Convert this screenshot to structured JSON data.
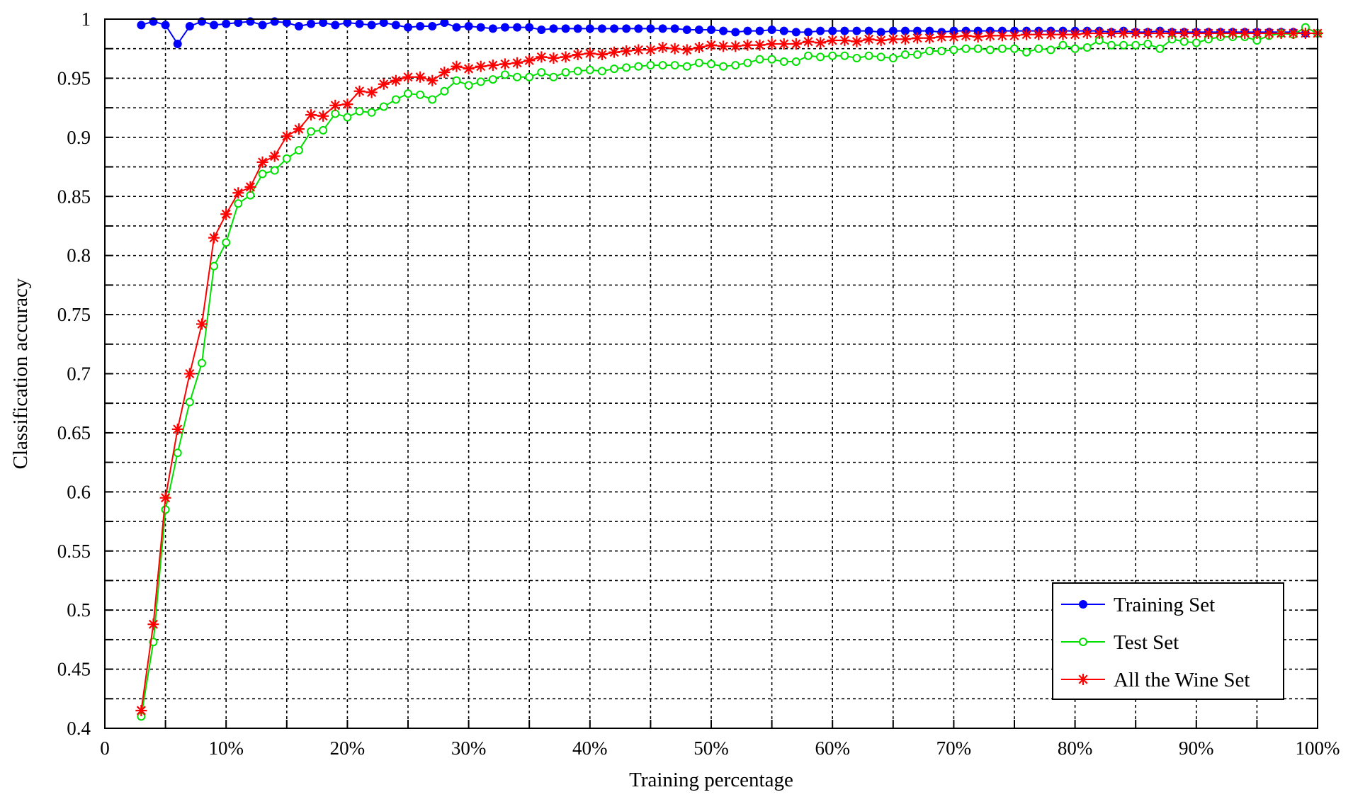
{
  "chart_data": {
    "type": "line",
    "title": "",
    "xlabel": "Training percentage",
    "ylabel": "Classification accuracy",
    "xlim": [
      0,
      100
    ],
    "ylim": [
      0.4,
      1.0
    ],
    "grid": true,
    "legend_position": "bottom-right",
    "x_ticks": [
      {
        "value": 0,
        "label": "0"
      },
      {
        "value": 10,
        "label": "10%"
      },
      {
        "value": 20,
        "label": "20%"
      },
      {
        "value": 30,
        "label": "30%"
      },
      {
        "value": 40,
        "label": "40%"
      },
      {
        "value": 50,
        "label": "50%"
      },
      {
        "value": 60,
        "label": "60%"
      },
      {
        "value": 70,
        "label": "70%"
      },
      {
        "value": 80,
        "label": "80%"
      },
      {
        "value": 90,
        "label": "90%"
      },
      {
        "value": 100,
        "label": "100%"
      }
    ],
    "y_ticks": [
      {
        "value": 0.4,
        "label": "0.4"
      },
      {
        "value": 0.45,
        "label": "0.45"
      },
      {
        "value": 0.5,
        "label": "0.5"
      },
      {
        "value": 0.55,
        "label": "0.55"
      },
      {
        "value": 0.6,
        "label": "0.6"
      },
      {
        "value": 0.65,
        "label": "0.65"
      },
      {
        "value": 0.7,
        "label": "0.7"
      },
      {
        "value": 0.75,
        "label": "0.75"
      },
      {
        "value": 0.8,
        "label": "0.8"
      },
      {
        "value": 0.85,
        "label": "0.85"
      },
      {
        "value": 0.9,
        "label": "0.9"
      },
      {
        "value": 0.95,
        "label": "0.95"
      },
      {
        "value": 1.0,
        "label": "1"
      }
    ],
    "x": [
      3,
      4,
      5,
      6,
      7,
      8,
      9,
      10,
      11,
      12,
      13,
      14,
      15,
      16,
      17,
      18,
      19,
      20,
      21,
      22,
      23,
      24,
      25,
      26,
      27,
      28,
      29,
      30,
      31,
      32,
      33,
      34,
      35,
      36,
      37,
      38,
      39,
      40,
      41,
      42,
      43,
      44,
      45,
      46,
      47,
      48,
      49,
      50,
      51,
      52,
      53,
      54,
      55,
      56,
      57,
      58,
      59,
      60,
      61,
      62,
      63,
      64,
      65,
      66,
      67,
      68,
      69,
      70,
      71,
      72,
      73,
      74,
      75,
      76,
      77,
      78,
      79,
      80,
      81,
      82,
      83,
      84,
      85,
      86,
      87,
      88,
      89,
      90,
      91,
      92,
      93,
      94,
      95,
      96,
      97,
      98,
      99,
      100
    ],
    "series": [
      {
        "name": "Training Set",
        "color": "#0000ff",
        "marker": "filled-circle",
        "values": [
          0.995,
          0.998,
          0.995,
          0.979,
          0.994,
          0.998,
          0.995,
          0.996,
          0.997,
          0.998,
          0.995,
          0.998,
          0.997,
          0.994,
          0.996,
          0.997,
          0.995,
          0.997,
          0.996,
          0.995,
          0.997,
          0.995,
          0.993,
          0.994,
          0.994,
          0.997,
          0.993,
          0.994,
          0.993,
          0.992,
          0.993,
          0.993,
          0.993,
          0.991,
          0.992,
          0.992,
          0.992,
          0.992,
          0.992,
          0.992,
          0.992,
          0.992,
          0.992,
          0.992,
          0.992,
          0.991,
          0.991,
          0.991,
          0.99,
          0.989,
          0.99,
          0.99,
          0.991,
          0.99,
          0.989,
          0.989,
          0.99,
          0.99,
          0.99,
          0.99,
          0.99,
          0.989,
          0.99,
          0.99,
          0.99,
          0.99,
          0.989,
          0.99,
          0.99,
          0.99,
          0.99,
          0.99,
          0.99,
          0.99,
          0.99,
          0.99,
          0.99,
          0.99,
          0.99,
          0.99,
          0.989,
          0.99,
          0.989,
          0.989,
          0.99,
          0.989,
          0.989,
          0.989,
          0.989,
          0.989,
          0.989,
          0.989,
          0.989,
          0.989,
          0.989,
          0.989,
          0.988,
          0.988
        ]
      },
      {
        "name": "Test Set",
        "color": "#00e000",
        "marker": "open-circle",
        "values": [
          0.41,
          0.473,
          0.585,
          0.633,
          0.676,
          0.709,
          0.791,
          0.811,
          0.844,
          0.851,
          0.869,
          0.872,
          0.882,
          0.889,
          0.905,
          0.906,
          0.92,
          0.917,
          0.922,
          0.921,
          0.926,
          0.932,
          0.937,
          0.936,
          0.932,
          0.939,
          0.948,
          0.944,
          0.947,
          0.949,
          0.953,
          0.951,
          0.951,
          0.955,
          0.951,
          0.955,
          0.956,
          0.957,
          0.956,
          0.958,
          0.959,
          0.96,
          0.961,
          0.961,
          0.961,
          0.96,
          0.963,
          0.962,
          0.96,
          0.961,
          0.963,
          0.966,
          0.966,
          0.964,
          0.964,
          0.969,
          0.968,
          0.969,
          0.969,
          0.967,
          0.969,
          0.968,
          0.967,
          0.97,
          0.97,
          0.973,
          0.973,
          0.974,
          0.975,
          0.975,
          0.974,
          0.975,
          0.975,
          0.972,
          0.975,
          0.974,
          0.978,
          0.975,
          0.976,
          0.982,
          0.978,
          0.978,
          0.978,
          0.979,
          0.975,
          0.983,
          0.981,
          0.98,
          0.983,
          0.985,
          0.985,
          0.985,
          0.982,
          0.986,
          0.988,
          0.987,
          0.993,
          0.988
        ]
      },
      {
        "name": "All the Wine Set",
        "color": "#ff0000",
        "marker": "star",
        "values": [
          0.415,
          0.488,
          0.595,
          0.653,
          0.7,
          0.742,
          0.815,
          0.835,
          0.853,
          0.858,
          0.879,
          0.884,
          0.901,
          0.907,
          0.919,
          0.918,
          0.927,
          0.928,
          0.939,
          0.938,
          0.945,
          0.948,
          0.951,
          0.951,
          0.948,
          0.955,
          0.96,
          0.958,
          0.96,
          0.961,
          0.962,
          0.963,
          0.965,
          0.968,
          0.967,
          0.968,
          0.97,
          0.971,
          0.97,
          0.972,
          0.973,
          0.974,
          0.974,
          0.976,
          0.975,
          0.974,
          0.976,
          0.978,
          0.977,
          0.977,
          0.978,
          0.978,
          0.979,
          0.979,
          0.979,
          0.981,
          0.98,
          0.982,
          0.982,
          0.981,
          0.983,
          0.982,
          0.983,
          0.983,
          0.984,
          0.984,
          0.985,
          0.985,
          0.986,
          0.985,
          0.986,
          0.986,
          0.986,
          0.987,
          0.987,
          0.987,
          0.987,
          0.987,
          0.988,
          0.988,
          0.988,
          0.988,
          0.988,
          0.988,
          0.988,
          0.988,
          0.988,
          0.988,
          0.988,
          0.988,
          0.988,
          0.988,
          0.988,
          0.988,
          0.988,
          0.988,
          0.988,
          0.988
        ]
      }
    ]
  }
}
